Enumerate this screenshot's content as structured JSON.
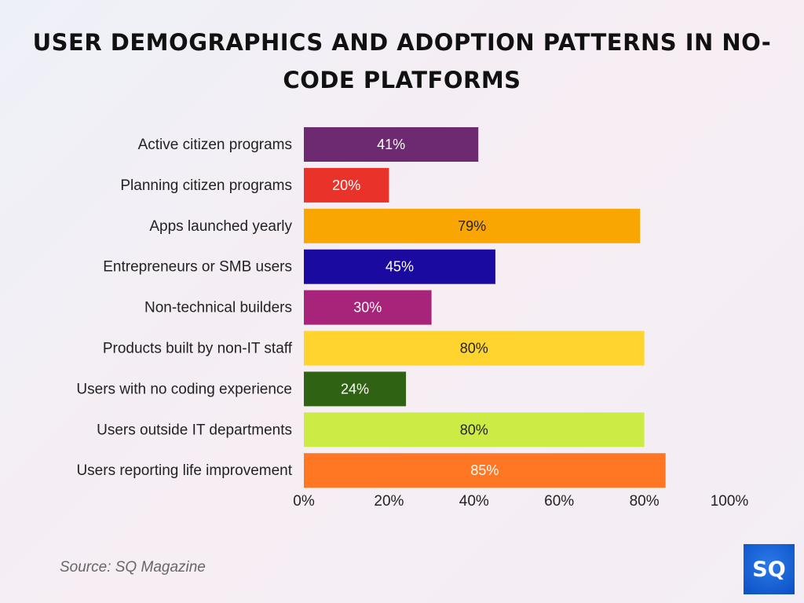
{
  "chart_data": {
    "type": "bar",
    "orientation": "horizontal",
    "title": "USER DEMOGRAPHICS AND ADOPTION PATTERNS IN NO-CODE PLATFORMS",
    "categories": [
      "Active citizen programs",
      "Planning citizen programs",
      "Apps launched yearly",
      "Entrepreneurs or SMB users",
      "Non-technical builders",
      "Products built by non-IT staff",
      "Users with no coding experience",
      "Users outside IT departments",
      "Users reporting life improvement"
    ],
    "values": [
      41,
      20,
      79,
      45,
      30,
      80,
      24,
      80,
      85
    ],
    "colors": [
      "#6e2a70",
      "#e9332a",
      "#f9a602",
      "#1a0aa0",
      "#a8237a",
      "#ffd42e",
      "#2f6313",
      "#cdeb45",
      "#ff7722"
    ],
    "label_colors": [
      "#ffffff",
      "#ffffff",
      "#222222",
      "#ffffff",
      "#ffffff",
      "#222222",
      "#ffffff",
      "#222222",
      "#ffffff"
    ],
    "xlim": [
      0,
      100
    ],
    "xticks": [
      "0%",
      "20%",
      "40%",
      "60%",
      "80%",
      "100%"
    ],
    "xlabel": "",
    "ylabel": "",
    "grid": false,
    "legend": "none"
  },
  "source": "Source: SQ Magazine",
  "logo_text": "SQ"
}
